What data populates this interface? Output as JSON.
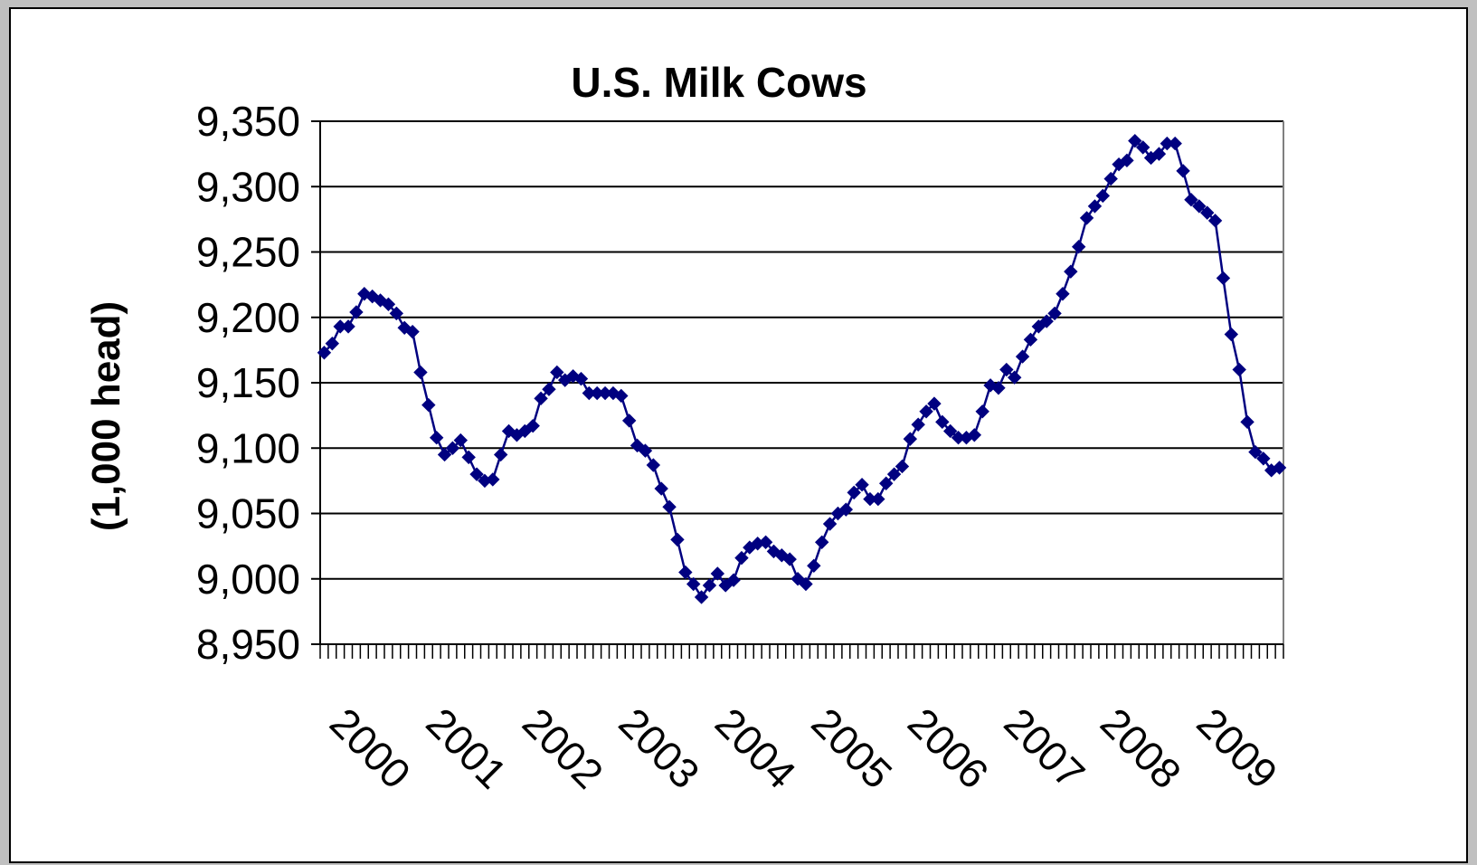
{
  "colors": {
    "series": "#000080",
    "grid": "#000000",
    "plot_border": "#808080",
    "background": "#ffffff"
  },
  "chart_data": {
    "type": "line",
    "title": "U.S. Milk Cows",
    "xlabel": "",
    "ylabel": "(1,000 head)",
    "ylim": [
      8950,
      9350
    ],
    "y_ticks": [
      8950,
      9000,
      9050,
      9100,
      9150,
      9200,
      9250,
      9300,
      9350
    ],
    "y_tick_labels": [
      "8,950",
      "9,000",
      "9,050",
      "9,100",
      "9,150",
      "9,200",
      "9,250",
      "9,300",
      "9,350"
    ],
    "x_tick_labels": [
      "2000",
      "2001",
      "2002",
      "2003",
      "2004",
      "2005",
      "2006",
      "2007",
      "2008",
      "2009"
    ],
    "x_unit": "month",
    "grid": "horizontal",
    "legend": "none",
    "marker": "diamond",
    "series": [
      {
        "values": [
          9173,
          9180,
          9193,
          9193,
          9204,
          9218,
          9216,
          9213,
          9210,
          9203,
          9192,
          9189,
          9158,
          9133,
          9108,
          9095,
          9100,
          9106,
          9093,
          9080,
          9075,
          9076,
          9095,
          9113,
          9110,
          9113,
          9117,
          9138,
          9145,
          9158,
          9152,
          9155,
          9153,
          9142,
          9142,
          9142,
          9142,
          9140,
          9121,
          9102,
          9098,
          9087,
          9069,
          9055,
          9030,
          9005,
          8996,
          8986,
          8995,
          9004,
          8995,
          8999,
          9016,
          9024,
          9027,
          9028,
          9021,
          9018,
          9015,
          9000,
          8996,
          9010,
          9028,
          9042,
          9050,
          9053,
          9066,
          9072,
          9061,
          9061,
          9073,
          9080,
          9086,
          9107,
          9118,
          9128,
          9134,
          9120,
          9113,
          9108,
          9108,
          9110,
          9128,
          9148,
          9146,
          9160,
          9154,
          9170,
          9183,
          9193,
          9197,
          9203,
          9218,
          9235,
          9254,
          9276,
          9285,
          9293,
          9306,
          9317,
          9320,
          9335,
          9330,
          9322,
          9325,
          9333,
          9333,
          9312,
          9290,
          9285,
          9280,
          9274,
          9230,
          9187,
          9160,
          9120,
          9097,
          9092,
          9083,
          9085
        ]
      }
    ]
  }
}
